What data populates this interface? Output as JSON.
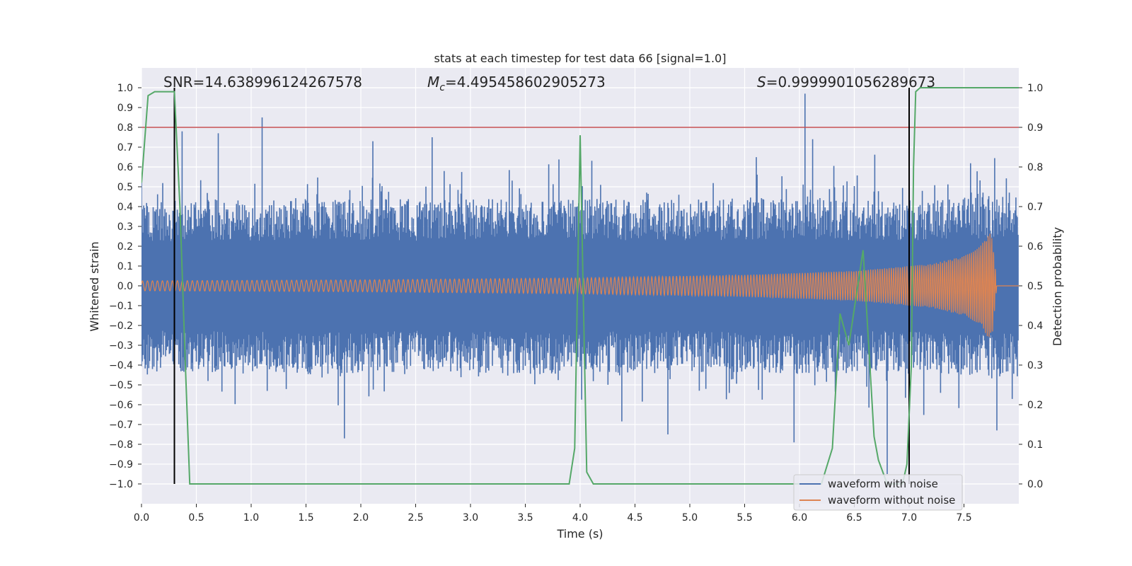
{
  "chart_data": {
    "type": "line",
    "title": "stats at each timestep for test data 66 [signal=1.0]",
    "xlabel": "Time (s)",
    "ylabel_left": "Whitened strain",
    "ylabel_right": "Detection probability",
    "xlim": [
      0.0,
      8.0
    ],
    "ylim_left": [
      -1.1,
      1.1
    ],
    "ylim_right": [
      -0.05,
      1.05
    ],
    "x_ticks": [
      "0.0",
      "0.5",
      "1.0",
      "1.5",
      "2.0",
      "2.5",
      "3.0",
      "3.5",
      "4.0",
      "4.5",
      "5.0",
      "5.5",
      "6.0",
      "6.5",
      "7.0",
      "7.5"
    ],
    "y_left_ticks": [
      "1.0",
      "0.9",
      "0.8",
      "0.7",
      "0.6",
      "0.5",
      "0.4",
      "0.3",
      "0.2",
      "0.1",
      "0.0",
      "−0.1",
      "−0.2",
      "−0.3",
      "−0.4",
      "−0.5",
      "−0.6",
      "−0.7",
      "−0.8",
      "−0.9",
      "−1.0"
    ],
    "y_right_ticks": [
      "1.0",
      "0.9",
      "0.8",
      "0.7",
      "0.6",
      "0.5",
      "0.4",
      "0.3",
      "0.2",
      "0.1",
      "0.0"
    ],
    "grid": true,
    "legend_position": "lower-right",
    "annotations": {
      "snr": "SNR=14.638996124267578",
      "mc_symbol": "M",
      "mc_sub": "c",
      "mc_value": "=4.495458602905273",
      "s_symbol": "S",
      "s_value": "=0.9999901056289673"
    },
    "series": [
      {
        "name": "waveform with noise",
        "color": "#4c72b0",
        "axis": "left",
        "x_range": [
          0.0,
          8.0
        ],
        "envelope": [
          0.4,
          0.42,
          0.41,
          0.43,
          0.42,
          0.41,
          0.42,
          0.43,
          0.42,
          0.41,
          0.42,
          0.43,
          0.42,
          0.41,
          0.43,
          0.44
        ],
        "peaks": [
          {
            "x": 1.1,
            "y": 0.85
          },
          {
            "x": 6.05,
            "y": 0.97
          },
          {
            "x": 1.85,
            "y": -0.77
          },
          {
            "x": 6.8,
            "y": -0.95
          },
          {
            "x": 0.7,
            "y": 0.77
          },
          {
            "x": 0.37,
            "y": 0.78
          },
          {
            "x": 2.65,
            "y": 0.75
          },
          {
            "x": 2.11,
            "y": 0.73
          },
          {
            "x": 5.95,
            "y": -0.79
          },
          {
            "x": 4.8,
            "y": -0.75
          },
          {
            "x": 6.12,
            "y": 0.74
          },
          {
            "x": 7.8,
            "y": -0.73
          },
          {
            "x": 0.13,
            "y": 0.05
          }
        ]
      },
      {
        "name": "waveform without noise",
        "color": "#dd8452",
        "axis": "left",
        "x_range": [
          0.0,
          7.82
        ],
        "amplitude": [
          [
            0.0,
            0.025
          ],
          [
            2.0,
            0.03
          ],
          [
            4.0,
            0.04
          ],
          [
            5.5,
            0.055
          ],
          [
            6.5,
            0.075
          ],
          [
            7.2,
            0.11
          ],
          [
            7.5,
            0.15
          ],
          [
            7.65,
            0.2
          ],
          [
            7.73,
            0.27
          ],
          [
            7.76,
            0.24
          ],
          [
            7.8,
            0.0
          ]
        ]
      },
      {
        "name": "Detection probability",
        "color": "#55a868",
        "axis": "right",
        "x": [
          0.0,
          0.06,
          0.12,
          0.3,
          0.35,
          0.4,
          0.44,
          3.9,
          3.95,
          4.0,
          4.06,
          4.12,
          4.8,
          5.0,
          6.2,
          6.3,
          6.37,
          6.45,
          6.58,
          6.68,
          6.72,
          6.8,
          6.88,
          6.94,
          6.98,
          7.02,
          7.04,
          7.06,
          7.1,
          7.5,
          8.0
        ],
        "y": [
          0.76,
          0.98,
          0.99,
          0.99,
          0.7,
          0.3,
          0.0,
          0.0,
          0.09,
          0.88,
          0.03,
          0.0,
          0.0,
          0.0,
          0.0,
          0.09,
          0.43,
          0.35,
          0.59,
          0.12,
          0.06,
          0.0,
          0.0,
          0.0,
          0.05,
          0.3,
          0.8,
          0.99,
          1.0,
          1.0,
          1.0
        ]
      },
      {
        "name": "threshold",
        "color": "#c44e52",
        "axis": "right",
        "y": 0.9
      }
    ],
    "vertical_lines": [
      {
        "x": 0.3,
        "y_from": -1.0,
        "y_to": 1.0,
        "color": "#000000"
      },
      {
        "x": 7.0,
        "y_from": -1.0,
        "y_to": 1.0,
        "color": "#000000"
      }
    ]
  }
}
